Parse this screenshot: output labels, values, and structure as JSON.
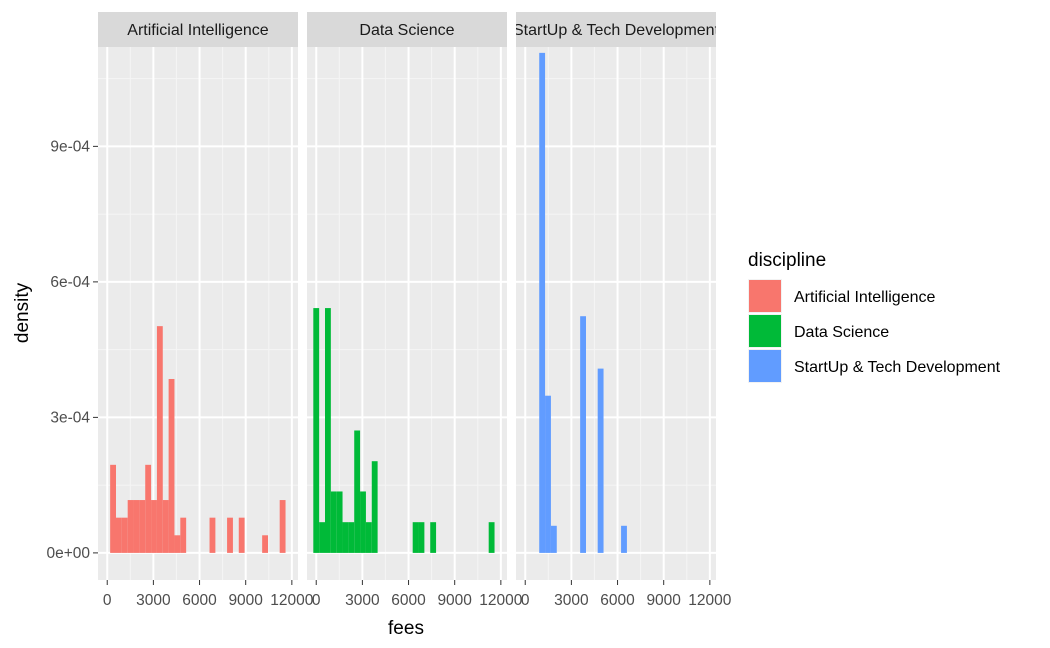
{
  "chart_data": {
    "type": "bar",
    "subtype": "faceted-density-histogram",
    "xlabel": "fees",
    "ylabel": "density",
    "xlim": [
      -600,
      12400
    ],
    "ylim": [
      -6e-05,
      0.00112
    ],
    "x_ticks": [
      0,
      3000,
      6000,
      9000,
      12000
    ],
    "x_tick_labels": [
      "0",
      "3000",
      "6000",
      "9000",
      "12000"
    ],
    "y_ticks": [
      0,
      0.0003,
      0.0006,
      0.0009
    ],
    "y_tick_labels": [
      "0e+00",
      "3e-04",
      "6e-04",
      "9e-04"
    ],
    "grid": true,
    "legend": {
      "title": "discipline",
      "position": "right",
      "items": [
        {
          "label": "Artificial Intelligence",
          "color": "#F8766D"
        },
        {
          "label": "Data Science",
          "color": "#00BA38"
        },
        {
          "label": "StartUp & Tech Development",
          "color": "#619CFF"
        }
      ]
    },
    "facets": [
      {
        "strip_label": "Artificial Intelligence",
        "color": "#F8766D",
        "bin_width": 380,
        "bin_centers": [
          380,
          760,
          1140,
          1520,
          1900,
          2280,
          2660,
          3040,
          3420,
          3800,
          4180,
          4560,
          4940,
          6840,
          7980,
          8740,
          10260,
          11400
        ],
        "density": [
          0.000195,
          7.8e-05,
          7.8e-05,
          0.000117,
          0.000117,
          0.000117,
          0.000195,
          0.000117,
          0.000502,
          0.000117,
          0.000385,
          3.9e-05,
          7.8e-05,
          7.8e-05,
          7.8e-05,
          7.8e-05,
          3.9e-05,
          0.000117
        ]
      },
      {
        "strip_label": "Data Science",
        "color": "#00BA38",
        "bin_width": 380,
        "bin_centers": [
          0,
          380,
          760,
          1140,
          1520,
          1900,
          2280,
          2660,
          3040,
          3420,
          3800,
          6460,
          6840,
          7600,
          11400
        ],
        "density": [
          0.000542,
          6.8e-05,
          0.000542,
          0.000136,
          0.000136,
          6.8e-05,
          6.8e-05,
          0.000271,
          0.000136,
          6.8e-05,
          0.000203,
          6.8e-05,
          6.8e-05,
          6.8e-05,
          6.8e-05
        ]
      },
      {
        "strip_label": "StartUp & Tech Development",
        "color": "#619CFF",
        "bin_width": 380,
        "bin_centers": [
          1100,
          1480,
          1860,
          3760,
          4900,
          6420
        ],
        "density": [
          0.001107,
          0.000348,
          6e-05,
          0.000524,
          0.000408,
          6e-05
        ]
      }
    ]
  }
}
